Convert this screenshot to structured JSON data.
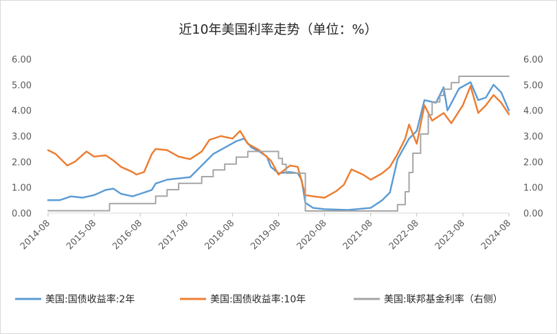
{
  "chart_data": {
    "type": "line",
    "title": "近10年美国利率走势（单位：%）",
    "colors": {
      "2y": "#5b9bd5",
      "10y": "#ed7d31",
      "fed": "#a5a5a5"
    },
    "y_left": {
      "range": [
        0,
        6
      ],
      "ticks": [
        "0.00",
        "1.00",
        "2.00",
        "3.00",
        "4.00",
        "5.00",
        "6.00"
      ]
    },
    "y_right": {
      "range": [
        0,
        6
      ],
      "ticks": [
        "0.00",
        "1.00",
        "2.00",
        "3.00",
        "4.00",
        "5.00",
        "6.00"
      ]
    },
    "x_ticks": [
      "2014-08",
      "2015-08",
      "2016-08",
      "2017-08",
      "2018-08",
      "2019-08",
      "2020-08",
      "2021-08",
      "2022-08",
      "2023-08",
      "2024-08"
    ],
    "grid": false,
    "legend_position": "bottom",
    "series": [
      {
        "name": "美国:国债收益率:2年",
        "key": "2y",
        "axis": "left",
        "points": [
          [
            "2014-08",
            0.5
          ],
          [
            "2014-11",
            0.5
          ],
          [
            "2015-02",
            0.65
          ],
          [
            "2015-05",
            0.6
          ],
          [
            "2015-08",
            0.7
          ],
          [
            "2015-11",
            0.9
          ],
          [
            "2016-01",
            0.95
          ],
          [
            "2016-03",
            0.75
          ],
          [
            "2016-06",
            0.65
          ],
          [
            "2016-08",
            0.75
          ],
          [
            "2016-11",
            0.9
          ],
          [
            "2016-12",
            1.15
          ],
          [
            "2017-03",
            1.3
          ],
          [
            "2017-06",
            1.35
          ],
          [
            "2017-09",
            1.4
          ],
          [
            "2017-12",
            1.85
          ],
          [
            "2018-03",
            2.3
          ],
          [
            "2018-06",
            2.55
          ],
          [
            "2018-09",
            2.8
          ],
          [
            "2018-11",
            2.9
          ],
          [
            "2019-01",
            2.55
          ],
          [
            "2019-03",
            2.4
          ],
          [
            "2019-05",
            2.2
          ],
          [
            "2019-06",
            1.8
          ],
          [
            "2019-08",
            1.55
          ],
          [
            "2019-11",
            1.6
          ],
          [
            "2020-01",
            1.55
          ],
          [
            "2020-02",
            1.3
          ],
          [
            "2020-03",
            0.4
          ],
          [
            "2020-05",
            0.2
          ],
          [
            "2020-08",
            0.15
          ],
          [
            "2021-02",
            0.12
          ],
          [
            "2021-08",
            0.2
          ],
          [
            "2021-11",
            0.5
          ],
          [
            "2022-01",
            0.8
          ],
          [
            "2022-03",
            2.1
          ],
          [
            "2022-06",
            2.9
          ],
          [
            "2022-08",
            3.2
          ],
          [
            "2022-10",
            4.4
          ],
          [
            "2023-01",
            4.3
          ],
          [
            "2023-03",
            4.9
          ],
          [
            "2023-04",
            4.0
          ],
          [
            "2023-07",
            4.85
          ],
          [
            "2023-10",
            5.1
          ],
          [
            "2023-12",
            4.4
          ],
          [
            "2024-02",
            4.5
          ],
          [
            "2024-04",
            5.0
          ],
          [
            "2024-06",
            4.7
          ],
          [
            "2024-08",
            4.0
          ]
        ]
      },
      {
        "name": "美国:国债收益率:10年",
        "key": "10y",
        "axis": "left",
        "points": [
          [
            "2014-08",
            2.45
          ],
          [
            "2014-10",
            2.3
          ],
          [
            "2015-01",
            1.85
          ],
          [
            "2015-03",
            2.0
          ],
          [
            "2015-06",
            2.4
          ],
          [
            "2015-08",
            2.2
          ],
          [
            "2015-11",
            2.25
          ],
          [
            "2016-01",
            2.05
          ],
          [
            "2016-03",
            1.8
          ],
          [
            "2016-06",
            1.6
          ],
          [
            "2016-07",
            1.5
          ],
          [
            "2016-09",
            1.6
          ],
          [
            "2016-11",
            2.3
          ],
          [
            "2016-12",
            2.5
          ],
          [
            "2017-03",
            2.45
          ],
          [
            "2017-06",
            2.2
          ],
          [
            "2017-09",
            2.1
          ],
          [
            "2017-12",
            2.4
          ],
          [
            "2018-02",
            2.85
          ],
          [
            "2018-05",
            3.0
          ],
          [
            "2018-08",
            2.9
          ],
          [
            "2018-10",
            3.2
          ],
          [
            "2018-12",
            2.7
          ],
          [
            "2019-03",
            2.45
          ],
          [
            "2019-06",
            2.05
          ],
          [
            "2019-08",
            1.5
          ],
          [
            "2019-11",
            1.85
          ],
          [
            "2020-01",
            1.8
          ],
          [
            "2020-03",
            0.7
          ],
          [
            "2020-05",
            0.65
          ],
          [
            "2020-08",
            0.6
          ],
          [
            "2020-11",
            0.85
          ],
          [
            "2021-01",
            1.1
          ],
          [
            "2021-03",
            1.7
          ],
          [
            "2021-06",
            1.5
          ],
          [
            "2021-08",
            1.3
          ],
          [
            "2021-11",
            1.55
          ],
          [
            "2022-01",
            1.8
          ],
          [
            "2022-03",
            2.3
          ],
          [
            "2022-05",
            2.9
          ],
          [
            "2022-06",
            3.45
          ],
          [
            "2022-08",
            2.7
          ],
          [
            "2022-10",
            4.2
          ],
          [
            "2022-12",
            3.6
          ],
          [
            "2023-03",
            3.9
          ],
          [
            "2023-05",
            3.5
          ],
          [
            "2023-08",
            4.2
          ],
          [
            "2023-10",
            4.95
          ],
          [
            "2023-12",
            3.9
          ],
          [
            "2024-02",
            4.2
          ],
          [
            "2024-04",
            4.6
          ],
          [
            "2024-06",
            4.3
          ],
          [
            "2024-08",
            3.85
          ]
        ]
      },
      {
        "name": "美国:联邦基金利率（右侧）",
        "key": "fed",
        "axis": "right",
        "step": true,
        "points": [
          [
            "2014-08",
            0.09
          ],
          [
            "2015-12",
            0.37
          ],
          [
            "2016-12",
            0.66
          ],
          [
            "2017-03",
            0.91
          ],
          [
            "2017-06",
            1.16
          ],
          [
            "2017-12",
            1.42
          ],
          [
            "2018-03",
            1.68
          ],
          [
            "2018-06",
            1.91
          ],
          [
            "2018-09",
            2.18
          ],
          [
            "2018-12",
            2.4
          ],
          [
            "2019-08",
            2.13
          ],
          [
            "2019-09",
            1.9
          ],
          [
            "2019-10",
            1.55
          ],
          [
            "2020-03",
            0.08
          ],
          [
            "2022-03",
            0.33
          ],
          [
            "2022-05",
            0.83
          ],
          [
            "2022-06",
            1.58
          ],
          [
            "2022-07",
            2.33
          ],
          [
            "2022-09",
            3.08
          ],
          [
            "2022-11",
            3.83
          ],
          [
            "2022-12",
            4.33
          ],
          [
            "2023-02",
            4.58
          ],
          [
            "2023-03",
            4.83
          ],
          [
            "2023-05",
            5.08
          ],
          [
            "2023-07",
            5.33
          ],
          [
            "2024-08",
            5.33
          ]
        ]
      }
    ]
  }
}
